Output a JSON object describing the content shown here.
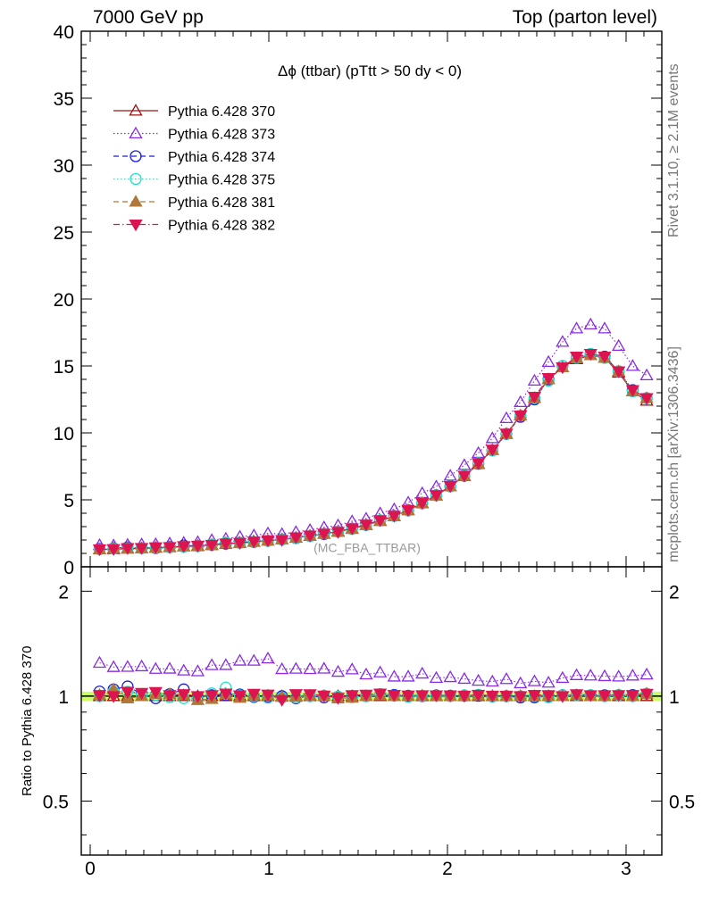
{
  "header": {
    "left": "7000 GeV pp",
    "right": "Top (parton level)"
  },
  "side_labels": {
    "rivet": "Rivet 3.1.10, ≥ 2.1M events",
    "mcplots": "mcplots.cern.ch [arXiv:1306.3436]"
  },
  "watermark": "(MC_FBA_TTBAR)",
  "chart_data": [
    {
      "type": "line",
      "title": "Δϕ (ttbar) (pTtt > 50 dy < 0)",
      "xlabel": "",
      "ylabel": "",
      "xlim": [
        -0.05,
        3.2
      ],
      "ylim": [
        0,
        40
      ],
      "yticks": [
        0,
        5,
        10,
        15,
        20,
        25,
        30,
        35,
        40
      ],
      "legend_position": "top-left",
      "x": [
        0.0524,
        0.1309,
        0.2094,
        0.288,
        0.3665,
        0.4451,
        0.5236,
        0.6021,
        0.6807,
        0.7592,
        0.8378,
        0.9163,
        0.9948,
        1.0734,
        1.1519,
        1.2305,
        1.309,
        1.3875,
        1.4661,
        1.5446,
        1.6232,
        1.7017,
        1.7802,
        1.8588,
        1.9373,
        2.0159,
        2.0944,
        2.1729,
        2.2515,
        2.33,
        2.4086,
        2.4871,
        2.5656,
        2.6442,
        2.7227,
        2.8013,
        2.8798,
        2.9583,
        3.0369,
        3.1154
      ],
      "series": [
        {
          "name": "Pythia 6.428 370",
          "color": "#a01010",
          "marker": "triangle-open",
          "dash": "solid",
          "values": [
            1.3,
            1.32,
            1.36,
            1.38,
            1.42,
            1.46,
            1.52,
            1.57,
            1.63,
            1.71,
            1.78,
            1.86,
            1.95,
            2.05,
            2.17,
            2.3,
            2.46,
            2.64,
            2.85,
            3.12,
            3.42,
            3.78,
            4.22,
            4.74,
            5.32,
            6.0,
            6.78,
            7.68,
            8.72,
            9.92,
            11.3,
            12.6,
            14.0,
            14.9,
            15.5,
            15.8,
            15.6,
            14.5,
            13.1,
            12.4
          ]
        },
        {
          "name": "Pythia 6.428 373",
          "color": "#8a2be2",
          "marker": "triangle-open",
          "dash": "dotted",
          "values": [
            1.62,
            1.6,
            1.65,
            1.68,
            1.7,
            1.75,
            1.8,
            1.85,
            2.0,
            2.1,
            2.25,
            2.35,
            2.5,
            2.45,
            2.6,
            2.75,
            2.95,
            3.1,
            3.4,
            3.6,
            4.0,
            4.3,
            4.8,
            5.5,
            6.0,
            6.8,
            7.6,
            8.5,
            9.6,
            11.1,
            12.3,
            13.9,
            15.3,
            16.8,
            17.8,
            18.1,
            17.8,
            16.5,
            15.0,
            14.3
          ]
        },
        {
          "name": "Pythia 6.428 374",
          "color": "#1a1adc",
          "marker": "circle-open",
          "dash": "dashed",
          "values": [
            1.34,
            1.38,
            1.45,
            1.4,
            1.4,
            1.48,
            1.59,
            1.56,
            1.64,
            1.72,
            1.8,
            1.85,
            1.94,
            2.05,
            2.14,
            2.3,
            2.44,
            2.63,
            2.85,
            3.12,
            3.46,
            3.81,
            4.23,
            4.74,
            5.35,
            6.02,
            6.8,
            7.7,
            8.7,
            9.92,
            11.2,
            12.5,
            14.0,
            15.0,
            15.6,
            15.9,
            15.7,
            14.6,
            13.2,
            12.6
          ]
        },
        {
          "name": "Pythia 6.428 375",
          "color": "#20e0c8",
          "marker": "circle-open",
          "dash": "dotted",
          "values": [
            1.3,
            1.36,
            1.4,
            1.39,
            1.43,
            1.45,
            1.5,
            1.54,
            1.66,
            1.81,
            1.79,
            1.86,
            1.93,
            2.03,
            2.15,
            2.3,
            2.47,
            2.63,
            2.83,
            3.12,
            3.47,
            3.79,
            4.2,
            4.75,
            5.33,
            6.0,
            6.82,
            7.75,
            8.7,
            9.91,
            11.3,
            12.6,
            13.9,
            15.0,
            15.6,
            15.9,
            15.6,
            14.6,
            13.1,
            12.6
          ]
        },
        {
          "name": "Pythia 6.428 381",
          "color": "#b07838",
          "marker": "triangle-filled",
          "dash": "dashed",
          "values": [
            1.31,
            1.38,
            1.34,
            1.38,
            1.44,
            1.48,
            1.53,
            1.53,
            1.6,
            1.73,
            1.76,
            1.87,
            1.96,
            2.04,
            2.16,
            2.31,
            2.46,
            2.6,
            2.82,
            3.12,
            3.44,
            3.78,
            4.22,
            4.76,
            5.33,
            6.0,
            6.79,
            7.71,
            8.73,
            9.93,
            11.3,
            12.6,
            14.0,
            14.9,
            15.6,
            15.8,
            15.6,
            14.6,
            13.1,
            12.6
          ]
        },
        {
          "name": "Pythia 6.428 382",
          "color": "#dc1450",
          "marker": "triangle-down-filled",
          "dash": "dashdot",
          "values": [
            1.31,
            1.32,
            1.4,
            1.41,
            1.46,
            1.47,
            1.54,
            1.57,
            1.64,
            1.74,
            1.79,
            1.89,
            1.97,
            2.0,
            2.2,
            2.33,
            2.47,
            2.61,
            2.87,
            3.15,
            3.48,
            3.81,
            4.24,
            4.77,
            5.35,
            6.03,
            6.8,
            7.75,
            8.75,
            9.95,
            11.3,
            12.7,
            14.1,
            14.9,
            15.7,
            15.9,
            15.7,
            14.6,
            13.2,
            12.6
          ]
        }
      ]
    },
    {
      "type": "line",
      "title": "",
      "xlabel": "",
      "ylabel": "Ratio to Pythia 6.428 370",
      "xlim": [
        -0.05,
        3.2
      ],
      "ylim": [
        0.35,
        2.35
      ],
      "scale": "log",
      "yticks": [
        0.5,
        1,
        2
      ],
      "xticks": [
        0,
        1,
        2,
        3
      ],
      "reference_band": {
        "low": 0.97,
        "high": 1.03,
        "color": "#ccff66"
      },
      "note": "ratio series are each series' values divided by Pythia 6.428 370"
    }
  ]
}
